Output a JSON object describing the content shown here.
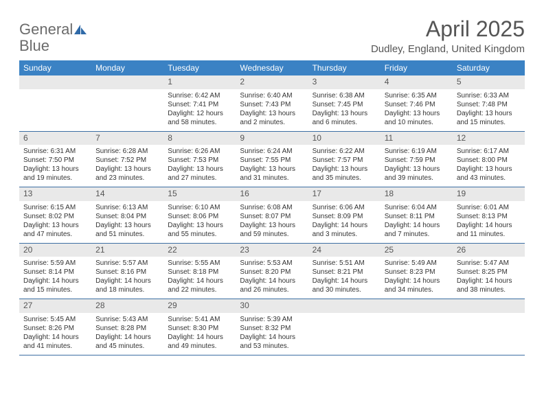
{
  "logo": {
    "text1": "General",
    "text2": "Blue"
  },
  "title": "April 2025",
  "location": "Dudley, England, United Kingdom",
  "weekdays": [
    "Sunday",
    "Monday",
    "Tuesday",
    "Wednesday",
    "Thursday",
    "Friday",
    "Saturday"
  ],
  "colors": {
    "header_bg": "#3b82c4",
    "header_text": "#ffffff",
    "daynum_bg": "#e9e9e9",
    "week_border": "#3b6ea3",
    "body_text": "#333333",
    "title_text": "#555555"
  },
  "weeks": [
    [
      {
        "n": "",
        "sr": "",
        "ss": "",
        "dl": ""
      },
      {
        "n": "",
        "sr": "",
        "ss": "",
        "dl": ""
      },
      {
        "n": "1",
        "sr": "Sunrise: 6:42 AM",
        "ss": "Sunset: 7:41 PM",
        "dl": "Daylight: 12 hours and 58 minutes."
      },
      {
        "n": "2",
        "sr": "Sunrise: 6:40 AM",
        "ss": "Sunset: 7:43 PM",
        "dl": "Daylight: 13 hours and 2 minutes."
      },
      {
        "n": "3",
        "sr": "Sunrise: 6:38 AM",
        "ss": "Sunset: 7:45 PM",
        "dl": "Daylight: 13 hours and 6 minutes."
      },
      {
        "n": "4",
        "sr": "Sunrise: 6:35 AM",
        "ss": "Sunset: 7:46 PM",
        "dl": "Daylight: 13 hours and 10 minutes."
      },
      {
        "n": "5",
        "sr": "Sunrise: 6:33 AM",
        "ss": "Sunset: 7:48 PM",
        "dl": "Daylight: 13 hours and 15 minutes."
      }
    ],
    [
      {
        "n": "6",
        "sr": "Sunrise: 6:31 AM",
        "ss": "Sunset: 7:50 PM",
        "dl": "Daylight: 13 hours and 19 minutes."
      },
      {
        "n": "7",
        "sr": "Sunrise: 6:28 AM",
        "ss": "Sunset: 7:52 PM",
        "dl": "Daylight: 13 hours and 23 minutes."
      },
      {
        "n": "8",
        "sr": "Sunrise: 6:26 AM",
        "ss": "Sunset: 7:53 PM",
        "dl": "Daylight: 13 hours and 27 minutes."
      },
      {
        "n": "9",
        "sr": "Sunrise: 6:24 AM",
        "ss": "Sunset: 7:55 PM",
        "dl": "Daylight: 13 hours and 31 minutes."
      },
      {
        "n": "10",
        "sr": "Sunrise: 6:22 AM",
        "ss": "Sunset: 7:57 PM",
        "dl": "Daylight: 13 hours and 35 minutes."
      },
      {
        "n": "11",
        "sr": "Sunrise: 6:19 AM",
        "ss": "Sunset: 7:59 PM",
        "dl": "Daylight: 13 hours and 39 minutes."
      },
      {
        "n": "12",
        "sr": "Sunrise: 6:17 AM",
        "ss": "Sunset: 8:00 PM",
        "dl": "Daylight: 13 hours and 43 minutes."
      }
    ],
    [
      {
        "n": "13",
        "sr": "Sunrise: 6:15 AM",
        "ss": "Sunset: 8:02 PM",
        "dl": "Daylight: 13 hours and 47 minutes."
      },
      {
        "n": "14",
        "sr": "Sunrise: 6:13 AM",
        "ss": "Sunset: 8:04 PM",
        "dl": "Daylight: 13 hours and 51 minutes."
      },
      {
        "n": "15",
        "sr": "Sunrise: 6:10 AM",
        "ss": "Sunset: 8:06 PM",
        "dl": "Daylight: 13 hours and 55 minutes."
      },
      {
        "n": "16",
        "sr": "Sunrise: 6:08 AM",
        "ss": "Sunset: 8:07 PM",
        "dl": "Daylight: 13 hours and 59 minutes."
      },
      {
        "n": "17",
        "sr": "Sunrise: 6:06 AM",
        "ss": "Sunset: 8:09 PM",
        "dl": "Daylight: 14 hours and 3 minutes."
      },
      {
        "n": "18",
        "sr": "Sunrise: 6:04 AM",
        "ss": "Sunset: 8:11 PM",
        "dl": "Daylight: 14 hours and 7 minutes."
      },
      {
        "n": "19",
        "sr": "Sunrise: 6:01 AM",
        "ss": "Sunset: 8:13 PM",
        "dl": "Daylight: 14 hours and 11 minutes."
      }
    ],
    [
      {
        "n": "20",
        "sr": "Sunrise: 5:59 AM",
        "ss": "Sunset: 8:14 PM",
        "dl": "Daylight: 14 hours and 15 minutes."
      },
      {
        "n": "21",
        "sr": "Sunrise: 5:57 AM",
        "ss": "Sunset: 8:16 PM",
        "dl": "Daylight: 14 hours and 18 minutes."
      },
      {
        "n": "22",
        "sr": "Sunrise: 5:55 AM",
        "ss": "Sunset: 8:18 PM",
        "dl": "Daylight: 14 hours and 22 minutes."
      },
      {
        "n": "23",
        "sr": "Sunrise: 5:53 AM",
        "ss": "Sunset: 8:20 PM",
        "dl": "Daylight: 14 hours and 26 minutes."
      },
      {
        "n": "24",
        "sr": "Sunrise: 5:51 AM",
        "ss": "Sunset: 8:21 PM",
        "dl": "Daylight: 14 hours and 30 minutes."
      },
      {
        "n": "25",
        "sr": "Sunrise: 5:49 AM",
        "ss": "Sunset: 8:23 PM",
        "dl": "Daylight: 14 hours and 34 minutes."
      },
      {
        "n": "26",
        "sr": "Sunrise: 5:47 AM",
        "ss": "Sunset: 8:25 PM",
        "dl": "Daylight: 14 hours and 38 minutes."
      }
    ],
    [
      {
        "n": "27",
        "sr": "Sunrise: 5:45 AM",
        "ss": "Sunset: 8:26 PM",
        "dl": "Daylight: 14 hours and 41 minutes."
      },
      {
        "n": "28",
        "sr": "Sunrise: 5:43 AM",
        "ss": "Sunset: 8:28 PM",
        "dl": "Daylight: 14 hours and 45 minutes."
      },
      {
        "n": "29",
        "sr": "Sunrise: 5:41 AM",
        "ss": "Sunset: 8:30 PM",
        "dl": "Daylight: 14 hours and 49 minutes."
      },
      {
        "n": "30",
        "sr": "Sunrise: 5:39 AM",
        "ss": "Sunset: 8:32 PM",
        "dl": "Daylight: 14 hours and 53 minutes."
      },
      {
        "n": "",
        "sr": "",
        "ss": "",
        "dl": ""
      },
      {
        "n": "",
        "sr": "",
        "ss": "",
        "dl": ""
      },
      {
        "n": "",
        "sr": "",
        "ss": "",
        "dl": ""
      }
    ]
  ]
}
